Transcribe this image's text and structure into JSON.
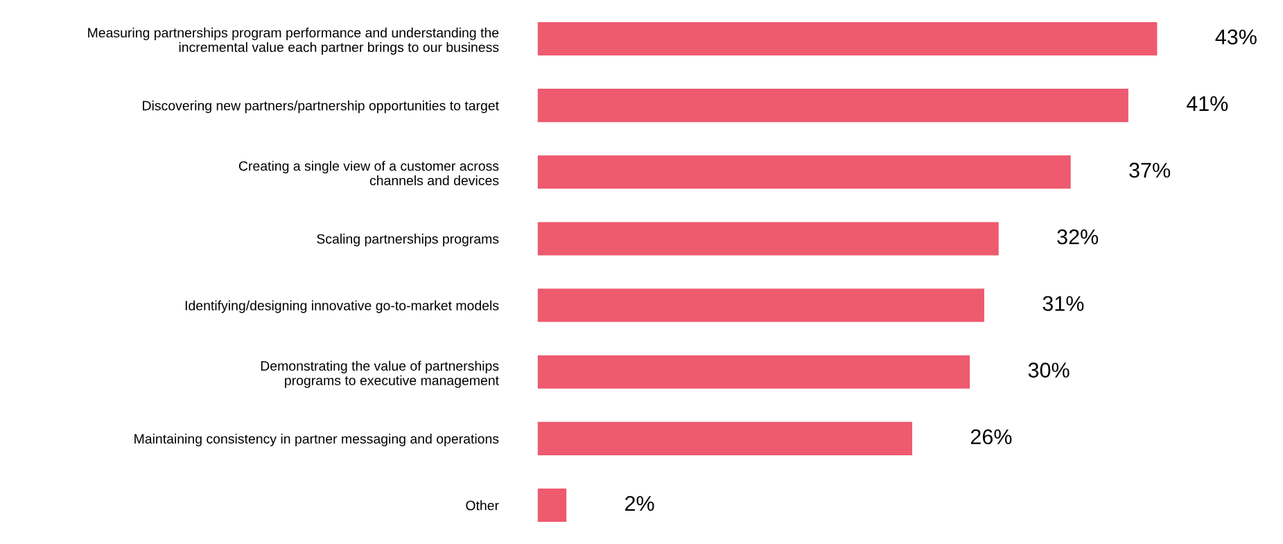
{
  "chart_data": {
    "type": "bar",
    "orientation": "horizontal",
    "color": "#ee5a6e",
    "categories": [
      "Measuring partnerships program performance and understanding the\nincremental value each partner brings to our business",
      "Discovering new partners/partnership opportunities to target",
      "Creating a single view of a customer across\nchannels and devices",
      "Scaling partnerships programs",
      "Identifying/designing innovative go-to-market models",
      "Demonstrating the value of partnerships\nprograms to executive management",
      "Maintaining consistency in partner messaging and operations",
      "Other"
    ],
    "values": [
      43,
      41,
      37,
      32,
      31,
      30,
      26,
      2
    ],
    "value_labels": [
      "43%",
      "41%",
      "37%",
      "32%",
      "31%",
      "30%",
      "26%",
      "2%"
    ]
  }
}
